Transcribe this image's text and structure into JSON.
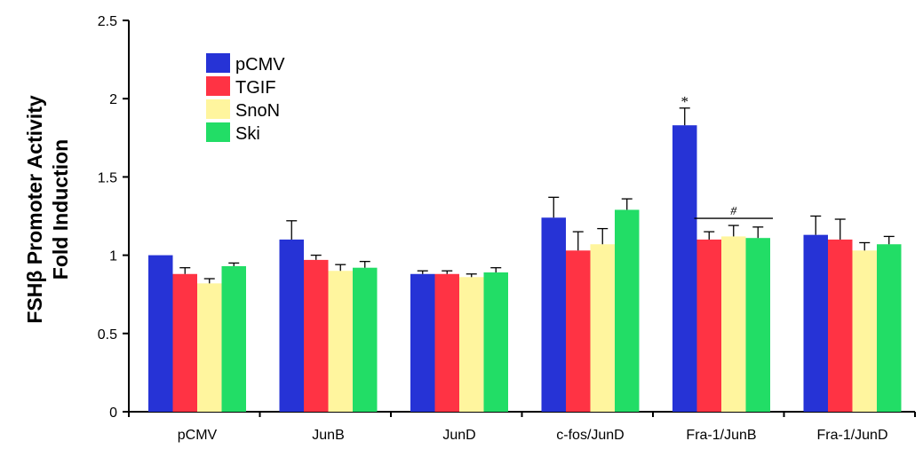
{
  "chart_data": {
    "type": "bar",
    "ylabel_line1": "FSHβ Promoter Activity",
    "ylabel_line2": "Fold Induction",
    "ylim": [
      0,
      2.5
    ],
    "yticks": [
      "0",
      "0.5",
      "1",
      "1.5",
      "2",
      "2.5"
    ],
    "ytick_values": [
      0,
      0.5,
      1,
      1.5,
      2,
      2.5
    ],
    "categories": [
      "pCMV",
      "JunB",
      "JunD",
      "c-fos/JunD",
      "Fra-1/JunB",
      "Fra-1/JunD"
    ],
    "series": [
      {
        "name": "pCMV",
        "color": "#2633D6",
        "values": [
          1.0,
          1.1,
          0.88,
          1.24,
          1.83,
          1.13
        ],
        "errors": [
          0.0,
          0.12,
          0.02,
          0.13,
          0.11,
          0.12
        ]
      },
      {
        "name": "TGIF",
        "color": "#FF3344",
        "values": [
          0.88,
          0.97,
          0.88,
          1.03,
          1.1,
          1.1
        ],
        "errors": [
          0.04,
          0.03,
          0.02,
          0.12,
          0.05,
          0.13
        ]
      },
      {
        "name": "SnoN",
        "color": "#FFF59E",
        "values": [
          0.82,
          0.9,
          0.86,
          1.07,
          1.12,
          1.03
        ],
        "errors": [
          0.03,
          0.04,
          0.02,
          0.1,
          0.07,
          0.05
        ]
      },
      {
        "name": "Ski",
        "color": "#22DD66",
        "values": [
          0.93,
          0.92,
          0.89,
          1.29,
          1.11,
          1.07
        ],
        "errors": [
          0.02,
          0.04,
          0.03,
          0.07,
          0.07,
          0.05
        ]
      }
    ],
    "legend_position": "top-left",
    "grid": false,
    "annotations": [
      {
        "text": "*",
        "category": "Fra-1/JunB",
        "series": "pCMV"
      },
      {
        "text": "#",
        "category": "Fra-1/JunB",
        "spans_series": [
          "TGIF",
          "SnoN",
          "Ski"
        ]
      }
    ]
  }
}
